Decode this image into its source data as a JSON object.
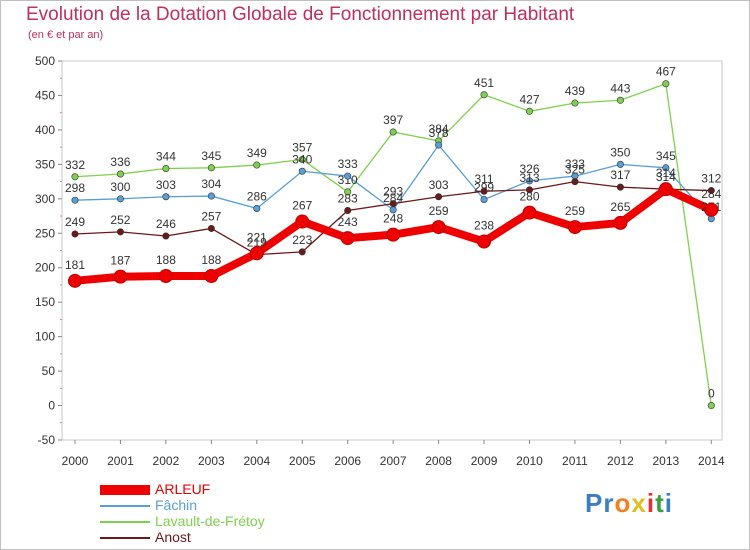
{
  "chart_data": {
    "type": "line",
    "title": "Evolution de la Dotation Globale de Fonctionnement par Habitant",
    "subtitle": "(en € et par an)",
    "xlabel": "",
    "ylabel": "",
    "ylim": [
      -50,
      500
    ],
    "yticks": [
      -50,
      0,
      50,
      100,
      150,
      200,
      250,
      300,
      350,
      400,
      450,
      500
    ],
    "categories": [
      "2000",
      "2001",
      "2002",
      "2003",
      "2004",
      "2005",
      "2006",
      "2007",
      "2008",
      "2009",
      "2010",
      "2011",
      "2012",
      "2013",
      "2014"
    ],
    "series": [
      {
        "name": "Lavault-de-Frétoy",
        "color": "#80d050",
        "values": [
          332,
          336,
          344,
          345,
          349,
          357,
          310,
          397,
          384,
          451,
          427,
          439,
          443,
          467,
          0
        ]
      },
      {
        "name": "Fâchin",
        "color": "#5a9fd4",
        "values": [
          298,
          300,
          303,
          304,
          286,
          340,
          333,
          284,
          378,
          299,
          326,
          333,
          350,
          345,
          271
        ]
      },
      {
        "name": "Anost",
        "color": "#6b1a1a",
        "values": [
          249,
          252,
          246,
          257,
          219,
          223,
          283,
          293,
          303,
          311,
          313,
          325,
          317,
          314,
          312
        ]
      },
      {
        "name": "ARLEUF",
        "color": "#ee0000",
        "values": [
          181,
          187,
          188,
          188,
          221,
          267,
          243,
          248,
          259,
          238,
          280,
          259,
          265,
          314,
          284
        ]
      }
    ],
    "legend": {
      "placement": "bottom-left",
      "order": [
        "ARLEUF",
        "Fâchin",
        "Lavault-de-Frétoy",
        "Anost"
      ]
    },
    "grid": false
  },
  "logo_text": "Proxiti"
}
